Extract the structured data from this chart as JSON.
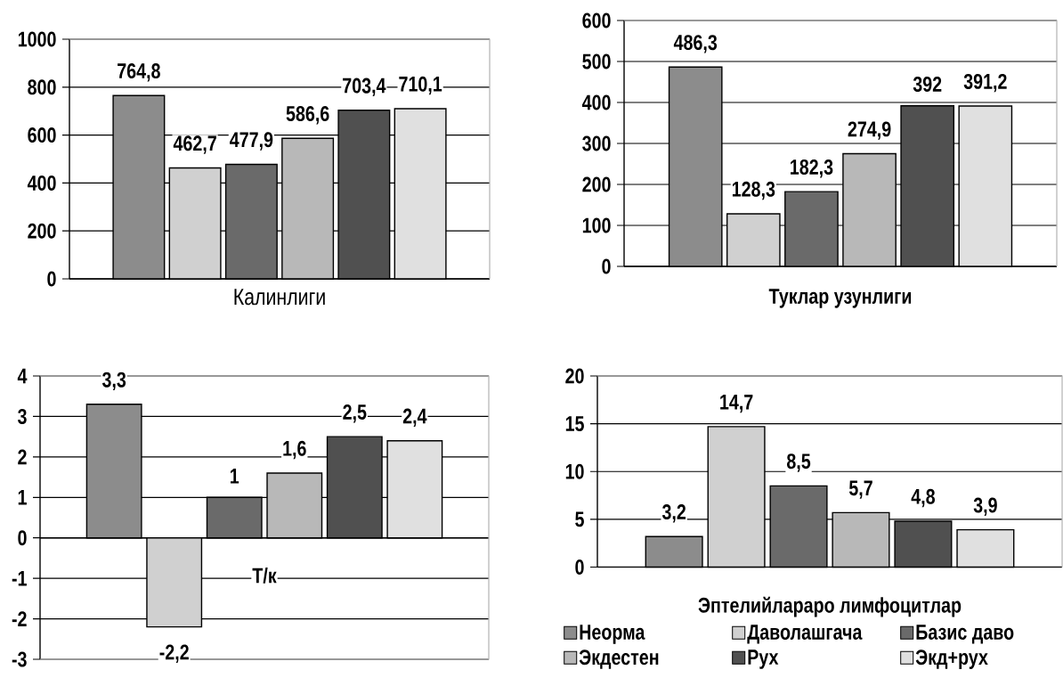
{
  "chart_data": [
    {
      "type": "bar",
      "categories": [
        null
      ],
      "xlabel": "Калинлиги",
      "series": [
        {
          "color": "#8c8c8c",
          "values": [
            764.8
          ],
          "value_labels": [
            "764,8"
          ]
        },
        {
          "color": "#d0d0d0",
          "values": [
            462.7
          ],
          "value_labels": [
            "462,7"
          ]
        },
        {
          "color": "#6a6a6a",
          "values": [
            477.9
          ],
          "value_labels": [
            "477,9"
          ]
        },
        {
          "color": "#b8b8b8",
          "values": [
            586.6
          ],
          "value_labels": [
            "586,6"
          ]
        },
        {
          "color": "#505050",
          "values": [
            703.4
          ],
          "value_labels": [
            "703,4"
          ]
        },
        {
          "color": "#e0e0e0",
          "values": [
            710.1
          ],
          "value_labels": [
            "710,1"
          ]
        }
      ],
      "ylim": [
        0,
        1000
      ],
      "yticks": [
        0,
        200,
        400,
        600,
        800,
        1000
      ],
      "grid": "y"
    },
    {
      "type": "bar",
      "categories": [
        null
      ],
      "xlabel": "Туклар узунлиги",
      "series": [
        {
          "color": "#8c8c8c",
          "values": [
            486.3
          ],
          "value_labels": [
            "486,3"
          ]
        },
        {
          "color": "#d0d0d0",
          "values": [
            128.3
          ],
          "value_labels": [
            "128,3"
          ]
        },
        {
          "color": "#6a6a6a",
          "values": [
            182.3
          ],
          "value_labels": [
            "182,3"
          ]
        },
        {
          "color": "#b8b8b8",
          "values": [
            274.9
          ],
          "value_labels": [
            "274,9"
          ]
        },
        {
          "color": "#505050",
          "values": [
            392
          ],
          "value_labels": [
            "392"
          ]
        },
        {
          "color": "#e0e0e0",
          "values": [
            391.2
          ],
          "value_labels": [
            "391,2"
          ]
        }
      ],
      "ylim": [
        0,
        600
      ],
      "yticks": [
        0,
        100,
        200,
        300,
        400,
        500,
        600
      ],
      "grid": "y"
    },
    {
      "type": "bar",
      "categories": [
        "Т/к"
      ],
      "series": [
        {
          "color": "#8c8c8c",
          "values": [
            3.3
          ],
          "value_labels": [
            "3,3"
          ]
        },
        {
          "color": "#d0d0d0",
          "values": [
            -2.2
          ],
          "value_labels": [
            "-2,2"
          ]
        },
        {
          "color": "#6a6a6a",
          "values": [
            1
          ],
          "value_labels": [
            "1"
          ]
        },
        {
          "color": "#b8b8b8",
          "values": [
            1.6
          ],
          "value_labels": [
            "1,6"
          ]
        },
        {
          "color": "#505050",
          "values": [
            2.5
          ],
          "value_labels": [
            "2,5"
          ]
        },
        {
          "color": "#e0e0e0",
          "values": [
            2.4
          ],
          "value_labels": [
            "2,4"
          ]
        }
      ],
      "ylim": [
        -3,
        4
      ],
      "yticks": [
        -3,
        -2,
        -1,
        0,
        1,
        2,
        3,
        4
      ],
      "grid": "y"
    },
    {
      "type": "bar",
      "categories": [
        "Эптелийлараро лимфоцитлар"
      ],
      "series": [
        {
          "name": "Неорма",
          "color": "#8c8c8c",
          "values": [
            3.2
          ],
          "value_labels": [
            "3,2"
          ]
        },
        {
          "name": "Даволашгача",
          "color": "#d0d0d0",
          "values": [
            14.7
          ],
          "value_labels": [
            "14,7"
          ]
        },
        {
          "name": "Базис даво",
          "color": "#6a6a6a",
          "values": [
            8.5
          ],
          "value_labels": [
            "8,5"
          ]
        },
        {
          "name": "Экдестен",
          "color": "#b8b8b8",
          "values": [
            5.7
          ],
          "value_labels": [
            "5,7"
          ]
        },
        {
          "name": "Рух",
          "color": "#505050",
          "values": [
            4.8
          ],
          "value_labels": [
            "4,8"
          ]
        },
        {
          "name": "Экд+рух",
          "color": "#e0e0e0",
          "values": [
            3.9
          ],
          "value_labels": [
            "3,9"
          ]
        }
      ],
      "ylim": [
        0,
        20
      ],
      "yticks": [
        0,
        5,
        10,
        15,
        20
      ],
      "grid": "y",
      "legend": "bottom"
    }
  ]
}
